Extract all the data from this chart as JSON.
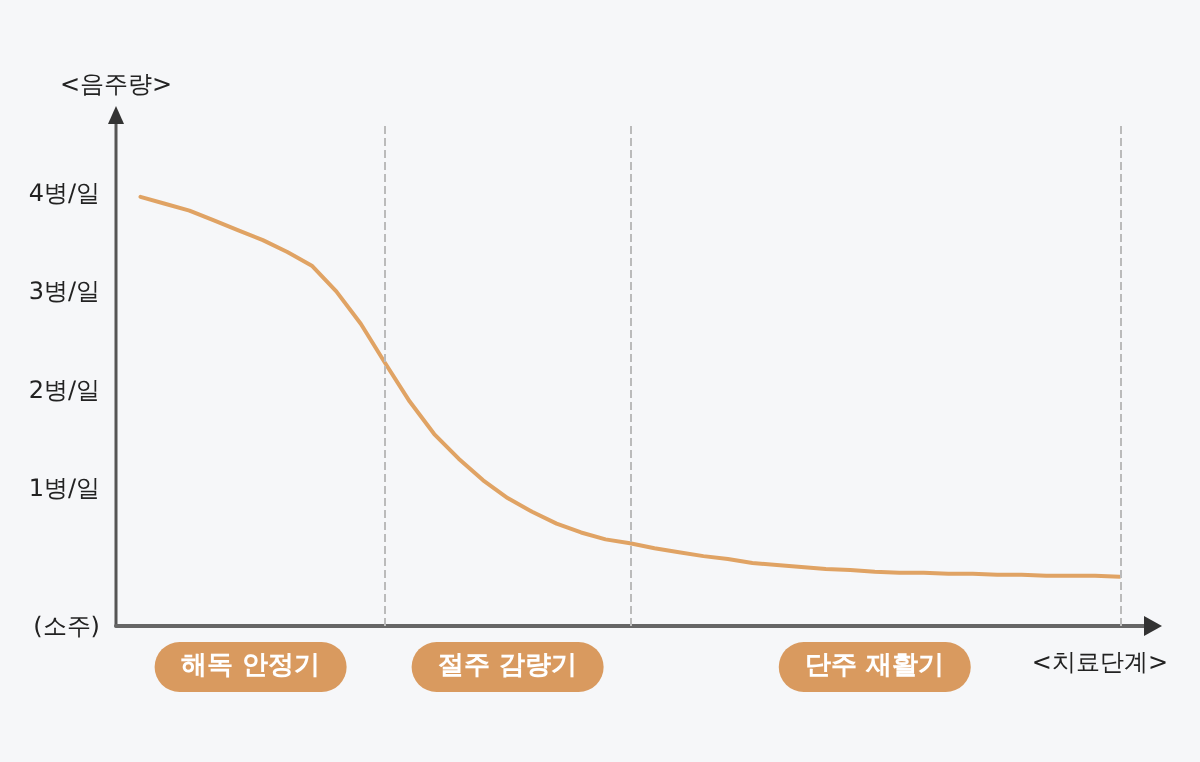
{
  "chart_data": {
    "type": "line",
    "ylabel": "<음주량>",
    "xlabel": "<치료단계>",
    "tick_labels": "y",
    "grid": "x",
    "marker": "none",
    "line_style": "solid",
    "ylim": [
      -0.4,
      4.7
    ],
    "yticks": [
      {
        "value": -0.4,
        "label": "(소주)"
      },
      {
        "value": 1,
        "label": "1병/일"
      },
      {
        "value": 2,
        "label": "2병/일"
      },
      {
        "value": 3,
        "label": "3병/일"
      },
      {
        "value": 4,
        "label": "4병/일"
      }
    ],
    "categories": [
      null,
      null,
      null,
      null,
      null,
      null,
      null,
      null,
      null,
      null,
      null,
      null,
      null,
      null,
      null,
      null,
      null,
      null,
      null,
      null,
      null,
      null,
      null,
      null,
      null,
      null,
      null,
      null,
      null,
      null,
      null,
      null,
      null,
      null,
      null,
      null,
      null,
      null,
      null,
      null,
      null,
      null,
      null
    ],
    "series": [
      {
        "color": "#e0a364",
        "values": [
          null,
          3.96,
          3.89,
          3.82,
          3.72,
          3.62,
          3.52,
          3.4,
          3.26,
          3.0,
          2.67,
          2.27,
          1.88,
          1.55,
          1.3,
          1.08,
          0.9,
          0.76,
          0.64,
          0.55,
          0.48,
          0.44,
          0.39,
          0.35,
          0.31,
          0.28,
          0.24,
          0.22,
          0.2,
          0.18,
          0.17,
          0.15,
          0.14,
          0.14,
          0.13,
          0.13,
          0.12,
          0.12,
          0.11,
          0.11,
          0.11,
          0.1,
          null
        ]
      }
    ],
    "annotations": [
      "해독 안정기",
      "절주 감량기",
      "단주 재활기"
    ]
  }
}
